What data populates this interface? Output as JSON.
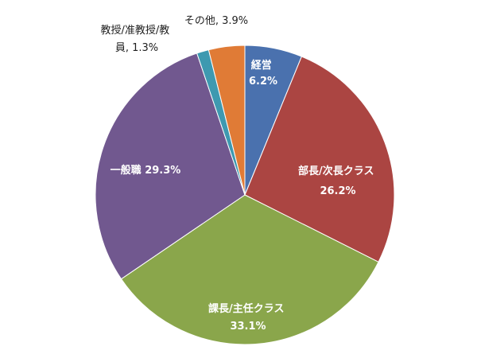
{
  "chart_data": {
    "type": "pie",
    "start_angle_deg": 0,
    "direction": "clockwise",
    "slices": [
      {
        "label": "経営",
        "value": 6.2,
        "value_text": "6.2%",
        "color": "#4a71ae"
      },
      {
        "label": "部長/次長クラス",
        "value": 26.2,
        "value_text": "26.2%",
        "color": "#ab4542"
      },
      {
        "label": "課長/主任クラス",
        "value": 33.1,
        "value_text": "33.1%",
        "color": "#8aa64b"
      },
      {
        "label": "一般職",
        "value": 29.3,
        "value_text": "29.3%",
        "color": "#71588f"
      },
      {
        "label": "教授/准教授/教員",
        "value": 1.3,
        "value_text": "1.3%",
        "color": "#3e99b0"
      },
      {
        "label": "その他",
        "value": 3.9,
        "value_text": "3.9%",
        "color": "#e07b36"
      }
    ]
  }
}
